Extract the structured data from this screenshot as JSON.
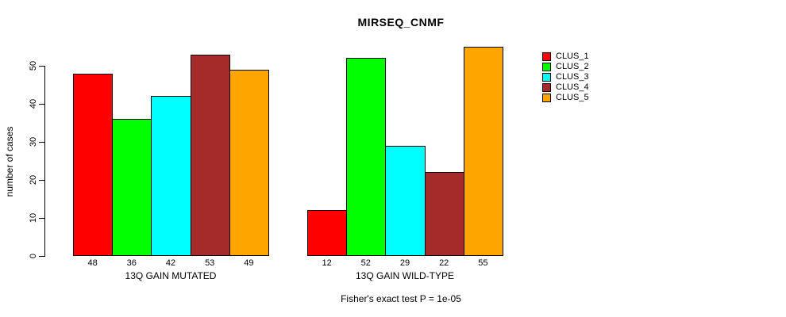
{
  "title": "MIRSEQ_CNMF",
  "footer": "Fisher's exact test P = 1e-05",
  "chart_data": {
    "type": "bar",
    "title": "MIRSEQ_CNMF",
    "ylabel": "number of cases",
    "xlabel": "",
    "ylim": [
      0,
      55
    ],
    "yticks": [
      0,
      10,
      20,
      30,
      40,
      50
    ],
    "grid": false,
    "legend_position": "right",
    "legend": [
      "CLUS_1",
      "CLUS_2",
      "CLUS_3",
      "CLUS_4",
      "CLUS_5"
    ],
    "colors": [
      "#ff0000",
      "#00ff00",
      "#00ffff",
      "#a52a2a",
      "#ffa500"
    ],
    "categories": [
      "13Q GAIN MUTATED",
      "13Q GAIN WILD-TYPE"
    ],
    "series": [
      {
        "name": "CLUS_1",
        "values": [
          48,
          12
        ]
      },
      {
        "name": "CLUS_2",
        "values": [
          36,
          52
        ]
      },
      {
        "name": "CLUS_3",
        "values": [
          42,
          29
        ]
      },
      {
        "name": "CLUS_4",
        "values": [
          53,
          22
        ]
      },
      {
        "name": "CLUS_5",
        "values": [
          49,
          55
        ]
      }
    ],
    "groups": [
      {
        "label": "13Q GAIN MUTATED",
        "values": [
          48,
          36,
          42,
          53,
          49
        ]
      },
      {
        "label": "13Q GAIN WILD-TYPE",
        "values": [
          12,
          52,
          29,
          22,
          55
        ]
      }
    ],
    "annotation": "Fisher's exact test P = 1e-05"
  }
}
